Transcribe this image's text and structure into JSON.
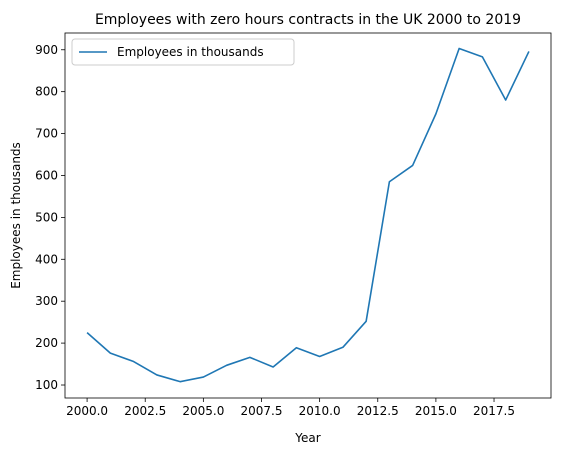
{
  "chart_data": {
    "type": "line",
    "title": "Employees with zero hours contracts in the UK 2000 to 2019",
    "xlabel": "Year",
    "ylabel": "Employees in thousands",
    "xlim": [
      1999.05,
      2019.95
    ],
    "ylim": [
      69,
      940
    ],
    "xticks": [
      2000,
      2002.5,
      2005,
      2007.5,
      2010,
      2012.5,
      2015,
      2017.5
    ],
    "xtick_labels": [
      "2000.0",
      "2002.5",
      "2005.0",
      "2007.5",
      "2010.0",
      "2012.5",
      "2015.0",
      "2017.5"
    ],
    "yticks": [
      100,
      200,
      300,
      400,
      500,
      600,
      700,
      800,
      900
    ],
    "ytick_labels": [
      "100",
      "200",
      "300",
      "400",
      "500",
      "600",
      "700",
      "800",
      "900"
    ],
    "grid": false,
    "legend": "upper-left",
    "series": [
      {
        "name": "Employees in thousands",
        "color": "#1f77b4",
        "x": [
          2000,
          2001,
          2002,
          2003,
          2004,
          2005,
          2006,
          2007,
          2008,
          2009,
          2010,
          2011,
          2012,
          2013,
          2014,
          2015,
          2016,
          2017,
          2018,
          2019
        ],
        "y": [
          225,
          176,
          156,
          124,
          108,
          119,
          147,
          166,
          143,
          189,
          168,
          190,
          252,
          585,
          624,
          747,
          903,
          883,
          780,
          896
        ]
      }
    ]
  }
}
